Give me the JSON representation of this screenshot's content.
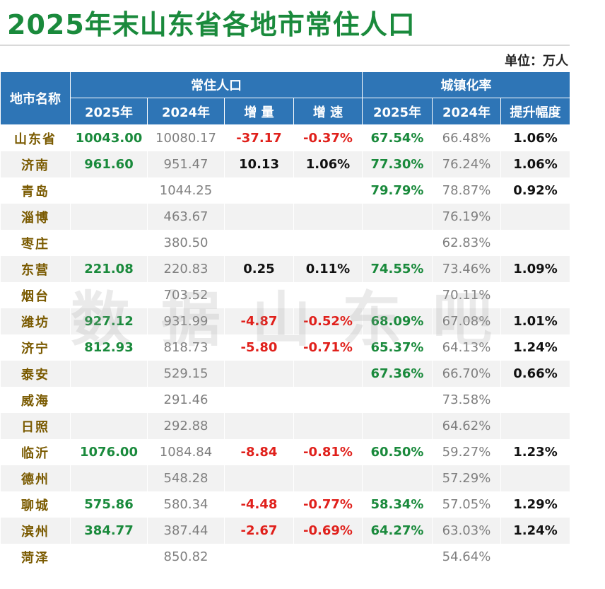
{
  "title": "2025年末山东省各地市常住人口",
  "unit": "单位：万人",
  "watermark": "数据山东吧",
  "colors": {
    "header": "#2e75b6",
    "title": "#1a8a3c",
    "positive": "#1a8a3c",
    "negative": "#e0201b",
    "name": "#7a5a00"
  },
  "headers": {
    "city": "地市名称",
    "pop_group": "常住人口",
    "urban_group": "城镇化率",
    "pop_2025": "2025年",
    "pop_2024": "2024年",
    "change": "增 量",
    "growth": "增 速",
    "urban_2025": "2025年",
    "urban_2024": "2024年",
    "increase": "提升幅度"
  },
  "rows": [
    {
      "name": "山东省",
      "pop_2025": "10043.00",
      "pop_2024": "10080.17",
      "change": "-37.17",
      "growth": "-0.37%",
      "urban_2025": "67.54%",
      "urban_2024": "66.48%",
      "increase": "1.06%"
    },
    {
      "name": "济南",
      "pop_2025": "961.60",
      "pop_2024": "951.47",
      "change": "10.13",
      "growth": "1.06%",
      "urban_2025": "77.30%",
      "urban_2024": "76.24%",
      "increase": "1.06%"
    },
    {
      "name": "青岛",
      "pop_2025": "",
      "pop_2024": "1044.25",
      "change": "",
      "growth": "",
      "urban_2025": "79.79%",
      "urban_2024": "78.87%",
      "increase": "0.92%"
    },
    {
      "name": "淄博",
      "pop_2025": "",
      "pop_2024": "463.67",
      "change": "",
      "growth": "",
      "urban_2025": "",
      "urban_2024": "76.19%",
      "increase": ""
    },
    {
      "name": "枣庄",
      "pop_2025": "",
      "pop_2024": "380.50",
      "change": "",
      "growth": "",
      "urban_2025": "",
      "urban_2024": "62.83%",
      "increase": ""
    },
    {
      "name": "东营",
      "pop_2025": "221.08",
      "pop_2024": "220.83",
      "change": "0.25",
      "growth": "0.11%",
      "urban_2025": "74.55%",
      "urban_2024": "73.46%",
      "increase": "1.09%"
    },
    {
      "name": "烟台",
      "pop_2025": "",
      "pop_2024": "703.52",
      "change": "",
      "growth": "",
      "urban_2025": "",
      "urban_2024": "70.11%",
      "increase": ""
    },
    {
      "name": "潍坊",
      "pop_2025": "927.12",
      "pop_2024": "931.99",
      "change": "-4.87",
      "growth": "-0.52%",
      "urban_2025": "68.09%",
      "urban_2024": "67.08%",
      "increase": "1.01%"
    },
    {
      "name": "济宁",
      "pop_2025": "812.93",
      "pop_2024": "818.73",
      "change": "-5.80",
      "growth": "-0.71%",
      "urban_2025": "65.37%",
      "urban_2024": "64.13%",
      "increase": "1.24%"
    },
    {
      "name": "泰安",
      "pop_2025": "",
      "pop_2024": "529.15",
      "change": "",
      "growth": "",
      "urban_2025": "67.36%",
      "urban_2024": "66.70%",
      "increase": "0.66%"
    },
    {
      "name": "威海",
      "pop_2025": "",
      "pop_2024": "291.46",
      "change": "",
      "growth": "",
      "urban_2025": "",
      "urban_2024": "73.58%",
      "increase": ""
    },
    {
      "name": "日照",
      "pop_2025": "",
      "pop_2024": "292.88",
      "change": "",
      "growth": "",
      "urban_2025": "",
      "urban_2024": "64.62%",
      "increase": ""
    },
    {
      "name": "临沂",
      "pop_2025": "1076.00",
      "pop_2024": "1084.84",
      "change": "-8.84",
      "growth": "-0.81%",
      "urban_2025": "60.50%",
      "urban_2024": "59.27%",
      "increase": "1.23%"
    },
    {
      "name": "德州",
      "pop_2025": "",
      "pop_2024": "548.28",
      "change": "",
      "growth": "",
      "urban_2025": "",
      "urban_2024": "57.29%",
      "increase": ""
    },
    {
      "name": "聊城",
      "pop_2025": "575.86",
      "pop_2024": "580.34",
      "change": "-4.48",
      "growth": "-0.77%",
      "urban_2025": "58.34%",
      "urban_2024": "57.05%",
      "increase": "1.29%"
    },
    {
      "name": "滨州",
      "pop_2025": "384.77",
      "pop_2024": "387.44",
      "change": "-2.67",
      "growth": "-0.69%",
      "urban_2025": "64.27%",
      "urban_2024": "63.03%",
      "increase": "1.24%"
    },
    {
      "name": "菏泽",
      "pop_2025": "",
      "pop_2024": "850.82",
      "change": "",
      "growth": "",
      "urban_2025": "",
      "urban_2024": "54.64%",
      "increase": ""
    }
  ]
}
